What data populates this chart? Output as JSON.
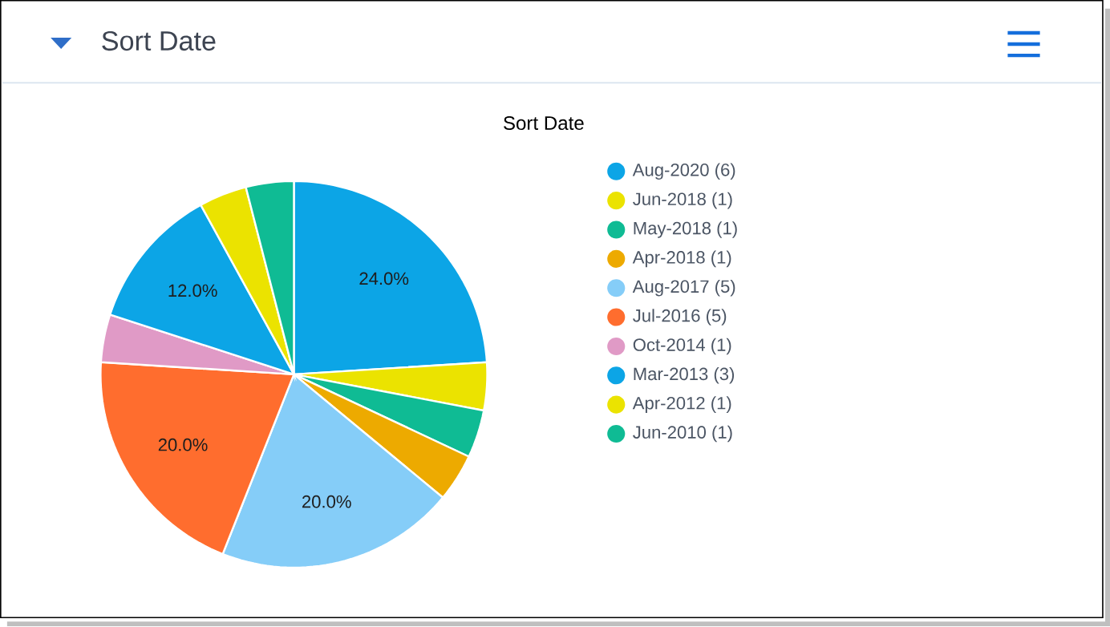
{
  "chart_data": {
    "type": "pie",
    "title": "Sort Date",
    "subtitle": "Sort Date",
    "categories": [
      "Aug-2020 (6)",
      "Jun-2018 (1)",
      "May-2018 (1)",
      "Apr-2018 (1)",
      "Aug-2017 (5)",
      "Jul-2016 (5)",
      "Oct-2014 (1)",
      "Mar-2013 (3)",
      "Apr-2012 (1)",
      "Jun-2010 (1)"
    ],
    "values": [
      24,
      4,
      4,
      4,
      20,
      20,
      4,
      12,
      4,
      4
    ],
    "colors": [
      "#0ca5e6",
      "#ebe300",
      "#0fbb94",
      "#edaa00",
      "#85cdf8",
      "#ff6d2e",
      "#e09ac6",
      "#0ca5e6",
      "#ebe300",
      "#0fbb94"
    ],
    "value_labels": [
      "24.0%",
      null,
      null,
      null,
      "20.0%",
      "20.0%",
      null,
      "12.0%",
      null,
      null
    ],
    "legend": "right"
  }
}
